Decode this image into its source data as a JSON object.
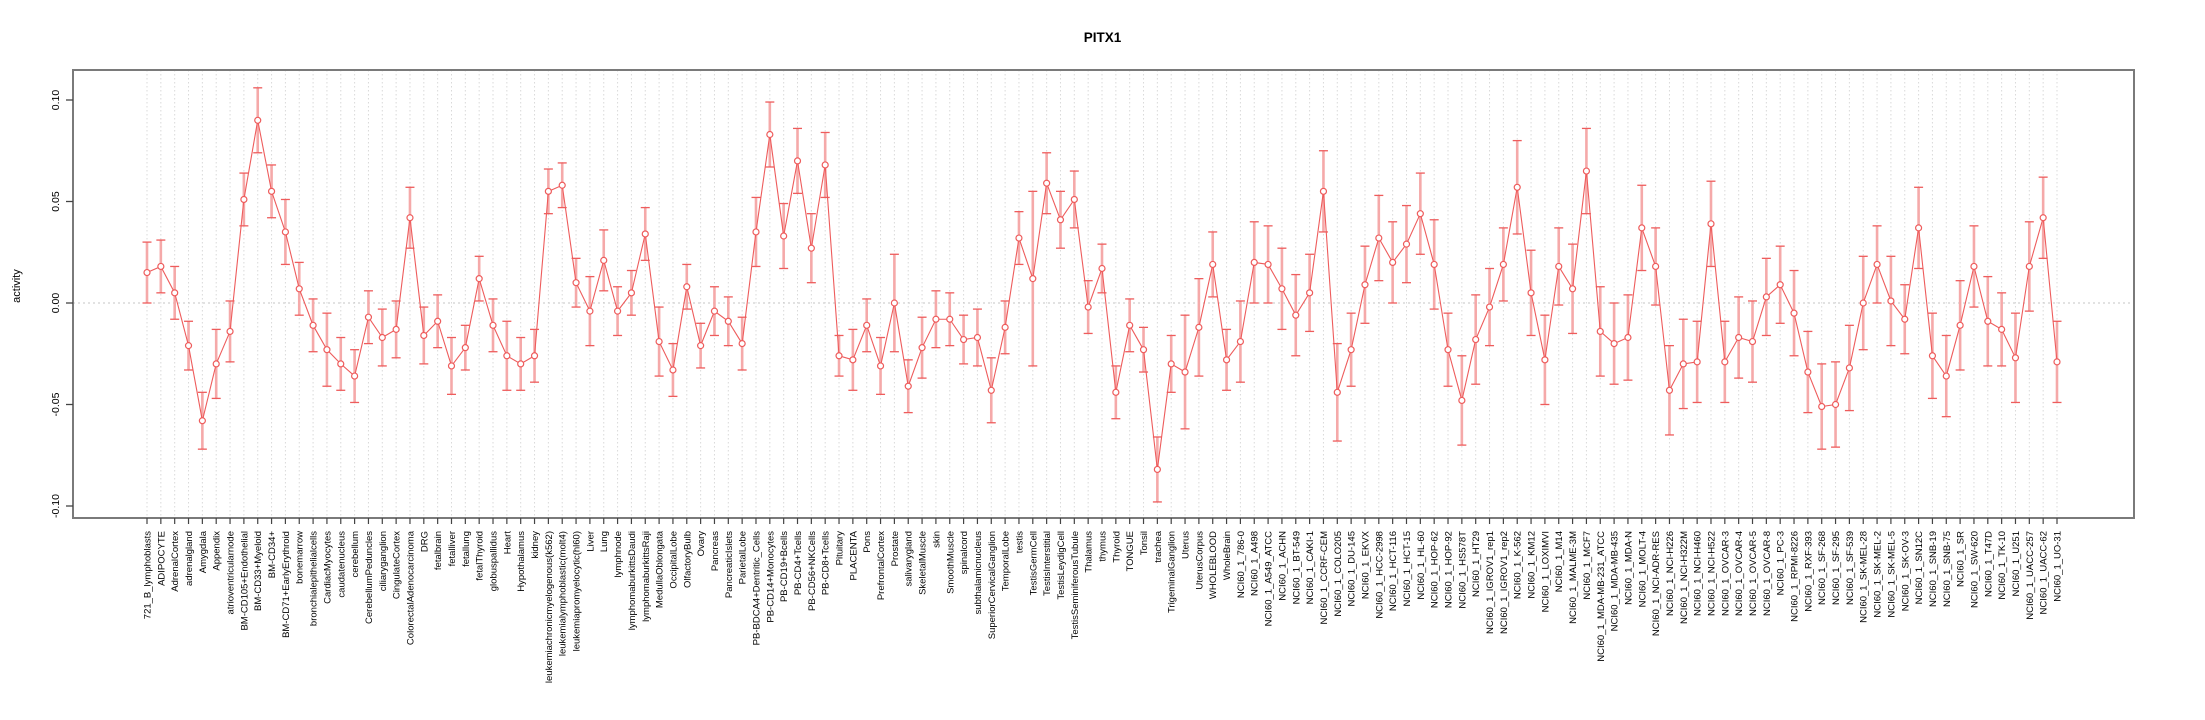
{
  "page_title": "PITX1",
  "chart_data": {
    "type": "line",
    "title": "PITX1",
    "xlabel": "",
    "ylabel": "activity",
    "ylim": [
      -0.106,
      0.115
    ],
    "yticks": [
      -0.1,
      -0.05,
      0.0,
      0.05,
      0.1
    ],
    "ytick_labels": [
      "-0.10",
      "-0.05",
      "0.00",
      "0.05",
      "0.10"
    ],
    "legend": "none",
    "grid": "vertical dotted line per category; horizontal dotted line at 0",
    "marker": "open-circle",
    "error_bars": true,
    "series_color": "#ee5c5c",
    "error_bar_color": "#f5a9a9",
    "grid_color": "#d9d9d9",
    "axis_color": "#7a7a7a",
    "categories": [
      "721_B_lymphoblasts",
      "ADIPOCYTE",
      "AdrenalCortex",
      "adrenalgland",
      "Amygdala",
      "Appendix",
      "atrioventricularnode",
      "BM-CD105+Endothelial",
      "BM-CD33+Myeloid",
      "BM-CD34+",
      "BM-CD71+EarlyErythroid",
      "bonemarrow",
      "bronchialepithelialcells",
      "CardiacMyocytes",
      "caudatenucleus",
      "cerebellum",
      "CerebellumPeduncles",
      "ciliaryganglion",
      "CingulateCortex",
      "ColorectalAdenocarcinoma",
      "DRG",
      "fetalbrain",
      "fetalliver",
      "fetallung",
      "fetalThyroid",
      "globuspallidus",
      "Heart",
      "Hypothalamus",
      "kidney",
      "leukemiachronicmyelogenous(k562)",
      "leukemialymphoblastic(molt4)",
      "leukemiapromyelocytic(hl60)",
      "Liver",
      "Lung",
      "lymphnode",
      "lymphomaburkittsDaudi",
      "lymphomaburkittsRaji",
      "MedullaOblongata",
      "OccipitalLobe",
      "OlfactoryBulb",
      "Ovary",
      "Pancreas",
      "PancreaticIslets",
      "ParietalLobe",
      "PB-BDCA4+Dentritic_Cells",
      "PB-CD14+Monocytes",
      "PB-CD19+Bcells",
      "PB-CD4+Tcells",
      "PB-CD56+NKCells",
      "PB-CD8+Tcells",
      "Pituitary",
      "PLACENTA",
      "Pons",
      "PrefrontalCortex",
      "Prostate",
      "salivarygland",
      "SkeletalMuscle",
      "skin",
      "SmoothMuscle",
      "spinalcord",
      "subthalamicnucleus",
      "SuperiorCervicalGanglion",
      "TemporalLobe",
      "testis",
      "TestisGermCell",
      "TestisInterstitial",
      "TestisLeydigCell",
      "TestisSeminiferousTubule",
      "Thalamus",
      "thymus",
      "Thyroid",
      "TONGUE",
      "Tonsil",
      "trachea",
      "TrigeminalGanglion",
      "Uterus",
      "UterusCorpus",
      "WHOLEBLOOD",
      "WholeBrain",
      "NCI60_1_786-0",
      "NCI60_1_A498",
      "NCI60_1_A549_ATCC",
      "NCI60_1_ACHN",
      "NCI60_1_BT-549",
      "NCI60_1_CAKI-1",
      "NCI60_1_CCRF-CEM",
      "NCI60_1_COLO205",
      "NCI60_1_DU-145",
      "NCI60_1_EKVX",
      "NCI60_1_HCC-2998",
      "NCI60_1_HCT-116",
      "NCI60_1_HCT-15",
      "NCI60_1_HL-60",
      "NCI60_1_HOP-62",
      "NCI60_1_HOP-92",
      "NCI60_1_HS578T",
      "NCI60_1_HT29",
      "NCI60_1_IGROV1_rep1",
      "NCI60_1_IGROV1_rep2",
      "NCI60_1_K-562",
      "NCI60_1_KM12",
      "NCI60_1_LOXIMVI",
      "NCI60_1_M14",
      "NCI60_1_MALME-3M",
      "NCI60_1_MCF7",
      "NCI60_1_MDA-MB-231_ATCC",
      "NCI60_1_MDA-MB-435",
      "NCI60_1_MDA-N",
      "NCI60_1_MOLT-4",
      "NCI60_1_NCI-ADR-RES",
      "NCI60_1_NCI-H226",
      "NCI60_1_NCI-H322M",
      "NCI60_1_NCI-H460",
      "NCI60_1_NCI-H522",
      "NCI60_1_OVCAR-3",
      "NCI60_1_OVCAR-4",
      "NCI60_1_OVCAR-5",
      "NCI60_1_OVCAR-8",
      "NCI60_1_PC-3",
      "NCI60_1_RPMI-8226",
      "NCI60_1_RXF-393",
      "NCI60_1_SF-268",
      "NCI60_1_SF-295",
      "NCI60_1_SF-539",
      "NCI60_1_SK-MEL-28",
      "NCI60_1_SK-MEL-2",
      "NCI60_1_SK-MEL-5",
      "NCI60_1_SK-OV-3",
      "NCI60_1_SN12C",
      "NCI60_1_SNB-19",
      "NCI60_1_SNB-75",
      "NCI60_1_SR",
      "NCI60_1_SW-620",
      "NCI60_1_T47D",
      "NCI60_1_TK-10",
      "NCI60_1_U251",
      "NCI60_1_UACC-257",
      "NCI60_1_UACC-62",
      "NCI60_1_UO-31"
    ],
    "values": [
      0.015,
      0.018,
      0.005,
      -0.021,
      -0.058,
      -0.03,
      -0.014,
      0.051,
      0.09,
      0.055,
      0.035,
      0.007,
      -0.011,
      -0.023,
      -0.03,
      -0.036,
      -0.007,
      -0.017,
      -0.013,
      0.042,
      -0.016,
      -0.009,
      -0.031,
      -0.022,
      0.012,
      -0.011,
      -0.026,
      -0.03,
      -0.026,
      0.055,
      0.058,
      0.01,
      -0.004,
      0.021,
      -0.004,
      0.005,
      0.034,
      -0.019,
      -0.033,
      0.008,
      -0.021,
      -0.004,
      -0.009,
      -0.02,
      0.035,
      0.083,
      0.033,
      0.07,
      0.027,
      0.068,
      -0.026,
      -0.028,
      -0.011,
      -0.031,
      0.0,
      -0.041,
      -0.022,
      -0.008,
      -0.008,
      -0.018,
      -0.017,
      -0.043,
      -0.012,
      0.032,
      0.012,
      0.059,
      0.041,
      0.051,
      -0.002,
      0.017,
      -0.044,
      -0.011,
      -0.023,
      -0.082,
      -0.03,
      -0.034,
      -0.012,
      0.019,
      -0.028,
      -0.019,
      0.02,
      0.019,
      0.007,
      -0.006,
      0.005,
      0.055,
      -0.044,
      -0.023,
      0.009,
      0.032,
      0.02,
      0.029,
      0.044,
      0.019,
      -0.023,
      -0.048,
      -0.018,
      -0.002,
      0.019,
      0.057,
      0.005,
      -0.028,
      0.018,
      0.007,
      0.065,
      -0.014,
      -0.02,
      -0.017,
      0.037,
      0.018,
      -0.043,
      -0.03,
      -0.029,
      0.039,
      -0.029,
      -0.017,
      -0.019,
      0.003,
      0.009,
      -0.005,
      -0.034,
      -0.051,
      -0.05,
      -0.032,
      0.0,
      0.019,
      0.001,
      -0.008,
      0.037,
      -0.026,
      -0.036,
      -0.011,
      0.018,
      -0.009,
      -0.013,
      -0.027,
      0.018,
      0.042,
      -0.029
    ],
    "errors": [
      0.015,
      0.013,
      0.013,
      0.012,
      0.014,
      0.017,
      0.015,
      0.013,
      0.016,
      0.013,
      0.016,
      0.013,
      0.013,
      0.018,
      0.013,
      0.013,
      0.013,
      0.014,
      0.014,
      0.015,
      0.014,
      0.013,
      0.014,
      0.011,
      0.011,
      0.013,
      0.017,
      0.013,
      0.013,
      0.011,
      0.011,
      0.012,
      0.017,
      0.015,
      0.012,
      0.011,
      0.013,
      0.017,
      0.013,
      0.011,
      0.011,
      0.012,
      0.012,
      0.013,
      0.017,
      0.016,
      0.016,
      0.016,
      0.017,
      0.016,
      0.01,
      0.015,
      0.013,
      0.014,
      0.024,
      0.013,
      0.015,
      0.014,
      0.013,
      0.012,
      0.014,
      0.016,
      0.013,
      0.013,
      0.043,
      0.015,
      0.014,
      0.014,
      0.013,
      0.012,
      0.013,
      0.013,
      0.011,
      0.016,
      0.014,
      0.028,
      0.024,
      0.016,
      0.015,
      0.02,
      0.02,
      0.019,
      0.02,
      0.02,
      0.019,
      0.02,
      0.024,
      0.018,
      0.019,
      0.021,
      0.02,
      0.019,
      0.02,
      0.022,
      0.018,
      0.022,
      0.022,
      0.019,
      0.018,
      0.023,
      0.021,
      0.022,
      0.019,
      0.022,
      0.021,
      0.022,
      0.02,
      0.021,
      0.021,
      0.019,
      0.022,
      0.022,
      0.02,
      0.021,
      0.02,
      0.02,
      0.02,
      0.019,
      0.019,
      0.021,
      0.02,
      0.021,
      0.021,
      0.021,
      0.023,
      0.019,
      0.022,
      0.017,
      0.02,
      0.021,
      0.02,
      0.022,
      0.02,
      0.022,
      0.018,
      0.022,
      0.022,
      0.02,
      0.02
    ]
  }
}
